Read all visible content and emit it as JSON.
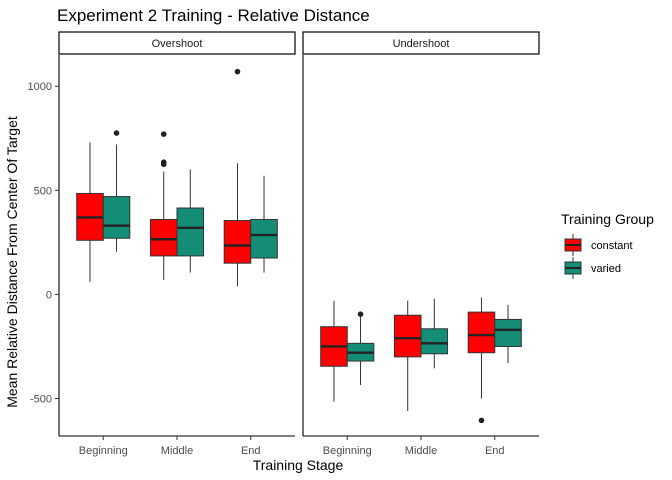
{
  "chart_data": {
    "type": "boxplot",
    "title": "Experiment 2 Training - Relative Distance",
    "xlabel": "Training Stage",
    "ylabel": "Mean Relative Distance From Center Of Target",
    "categories": [
      "Beginning",
      "Middle",
      "End"
    ],
    "ylim": [
      -680,
      1150
    ],
    "yticks": [
      -500,
      0,
      500,
      1000
    ],
    "legend": {
      "title": "Training Group",
      "position": "right",
      "items": [
        {
          "label": "constant",
          "color": "#ff0000"
        },
        {
          "label": "varied",
          "color": "#138d75"
        }
      ]
    },
    "facets": [
      {
        "label": "Overshoot",
        "groups": [
          {
            "category": "Beginning",
            "group": "constant",
            "min": 60,
            "q1": 260,
            "median": 370,
            "q3": 485,
            "max": 730,
            "outliers": []
          },
          {
            "category": "Beginning",
            "group": "varied",
            "min": 205,
            "q1": 270,
            "median": 330,
            "q3": 470,
            "max": 720,
            "outliers": [
              775
            ]
          },
          {
            "category": "Middle",
            "group": "constant",
            "min": 70,
            "q1": 185,
            "median": 265,
            "q3": 360,
            "max": 590,
            "outliers": [
              625,
              635,
              770
            ]
          },
          {
            "category": "Middle",
            "group": "varied",
            "min": 105,
            "q1": 185,
            "median": 320,
            "q3": 415,
            "max": 600,
            "outliers": []
          },
          {
            "category": "End",
            "group": "constant",
            "min": 40,
            "q1": 150,
            "median": 235,
            "q3": 355,
            "max": 630,
            "outliers": [
              1070
            ]
          },
          {
            "category": "End",
            "group": "varied",
            "min": 105,
            "q1": 175,
            "median": 285,
            "q3": 360,
            "max": 570,
            "outliers": []
          }
        ]
      },
      {
        "label": "Undershoot",
        "groups": [
          {
            "category": "Beginning",
            "group": "constant",
            "min": -515,
            "q1": -345,
            "median": -250,
            "q3": -155,
            "max": -30,
            "outliers": []
          },
          {
            "category": "Beginning",
            "group": "varied",
            "min": -435,
            "q1": -320,
            "median": -280,
            "q3": -235,
            "max": -105,
            "outliers": [
              -95
            ]
          },
          {
            "category": "Middle",
            "group": "constant",
            "min": -560,
            "q1": -300,
            "median": -210,
            "q3": -100,
            "max": -30,
            "outliers": []
          },
          {
            "category": "Middle",
            "group": "varied",
            "min": -355,
            "q1": -285,
            "median": -235,
            "q3": -165,
            "max": -20,
            "outliers": []
          },
          {
            "category": "End",
            "group": "constant",
            "min": -500,
            "q1": -280,
            "median": -195,
            "q3": -85,
            "max": -15,
            "outliers": [
              -605
            ]
          },
          {
            "category": "End",
            "group": "varied",
            "min": -330,
            "q1": -250,
            "median": -170,
            "q3": -120,
            "max": -50,
            "outliers": []
          }
        ]
      }
    ]
  }
}
